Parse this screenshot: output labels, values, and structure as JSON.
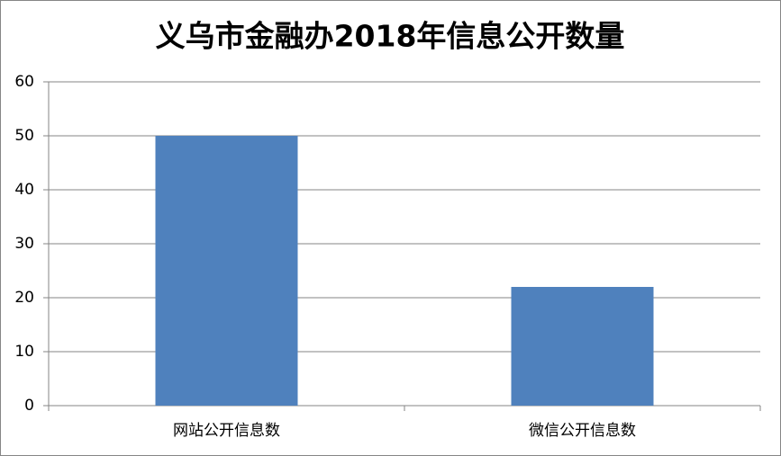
{
  "chart_data": {
    "type": "bar",
    "title": "义乌市金融办2018年信息公开数量",
    "categories": [
      "网站公开信息数",
      "微信公开信息数"
    ],
    "values": [
      50,
      22
    ],
    "color": "#4f81bd",
    "ylim": [
      0,
      60
    ],
    "yticks": [
      0,
      10,
      20,
      30,
      40,
      50,
      60
    ],
    "grid": true
  }
}
